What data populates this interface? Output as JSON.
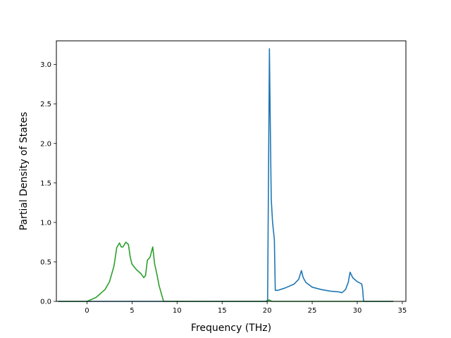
{
  "chart_data": {
    "type": "line",
    "title": "",
    "xlabel": "Frequency (THz)",
    "ylabel": "Partial Density of States",
    "xlim": [
      -3.4,
      35.4
    ],
    "ylim": [
      0,
      3.3
    ],
    "xticks": [
      0,
      5,
      10,
      15,
      20,
      25,
      30,
      35
    ],
    "yticks": [
      0.0,
      0.5,
      1.0,
      1.5,
      2.0,
      2.5,
      3.0
    ],
    "xtick_labels": [
      "0",
      "5",
      "10",
      "15",
      "20",
      "25",
      "30",
      "35"
    ],
    "ytick_labels": [
      "0.0",
      "0.5",
      "1.0",
      "1.5",
      "2.0",
      "2.5",
      "3.0"
    ],
    "grid": false,
    "legend": false,
    "series": [
      {
        "color": "#1f77b4",
        "x": [
          -3.2,
          0,
          5,
          10,
          15,
          19.9,
          20.05,
          20.25,
          20.35,
          20.45,
          20.6,
          20.8,
          20.9,
          21.2,
          22,
          23,
          23.5,
          23.8,
          24.0,
          24.3,
          25,
          26,
          27,
          28,
          28.3,
          28.7,
          29.0,
          29.2,
          29.5,
          30,
          30.5,
          30.6,
          30.7,
          31,
          34
        ],
        "y": [
          0,
          0,
          0,
          0,
          0,
          0,
          0.02,
          3.2,
          2.2,
          1.3,
          1.0,
          0.78,
          0.14,
          0.14,
          0.17,
          0.22,
          0.28,
          0.39,
          0.3,
          0.24,
          0.18,
          0.15,
          0.13,
          0.12,
          0.11,
          0.15,
          0.24,
          0.37,
          0.3,
          0.25,
          0.22,
          0.15,
          0.0,
          0,
          0
        ]
      },
      {
        "color": "#2ca02c",
        "x": [
          -3.2,
          0,
          1,
          2,
          2.5,
          3,
          3.3,
          3.6,
          3.8,
          4.0,
          4.3,
          4.6,
          4.8,
          5.0,
          5.5,
          6,
          6.3,
          6.5,
          6.7,
          7.0,
          7.3,
          7.5,
          7.8,
          8.0,
          8.5,
          9,
          15,
          20,
          20.2,
          20.5,
          34
        ],
        "y": [
          0,
          0,
          0.05,
          0.15,
          0.25,
          0.45,
          0.68,
          0.74,
          0.69,
          0.69,
          0.75,
          0.72,
          0.56,
          0.47,
          0.4,
          0.35,
          0.3,
          0.33,
          0.52,
          0.56,
          0.69,
          0.48,
          0.32,
          0.2,
          0.0,
          0,
          0,
          0,
          0.02,
          0,
          0
        ]
      }
    ]
  }
}
